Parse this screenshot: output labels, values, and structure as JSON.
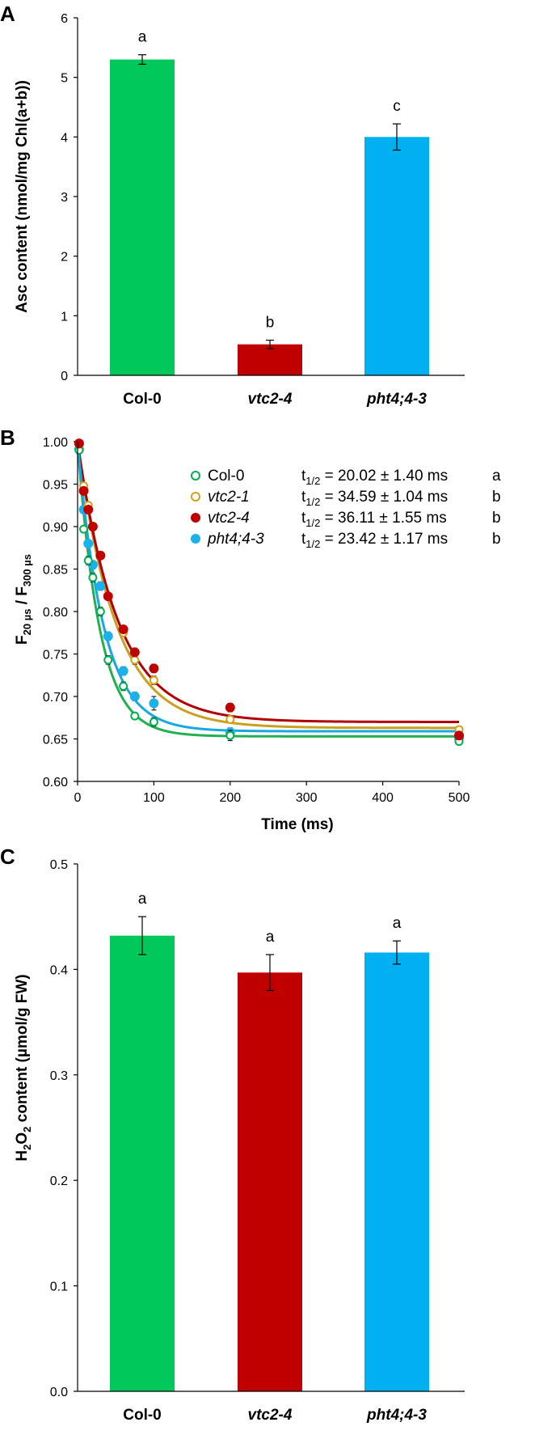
{
  "figure": {
    "panels": [
      "A",
      "B",
      "C"
    ]
  },
  "chart_data": [
    {
      "panel": "A",
      "type": "bar",
      "categories": [
        "Col-0",
        "vtc2-4",
        "pht4;4-3"
      ],
      "category_italic": [
        false,
        true,
        true
      ],
      "values": [
        5.3,
        0.52,
        4.0
      ],
      "errors": [
        0.08,
        0.07,
        0.22
      ],
      "significance": [
        "a",
        "b",
        "c"
      ],
      "colors": [
        "#00c85a",
        "#c00000",
        "#00b0f0"
      ],
      "ylabel": "Asc content (nmol/mg Chl(a+b))",
      "ylim": [
        0,
        6
      ],
      "yticks": [
        0,
        1,
        2,
        3,
        4,
        5,
        6
      ],
      "ytick_labels": [
        "0",
        "1",
        "2",
        "3",
        "4",
        "5",
        "6"
      ]
    },
    {
      "panel": "B",
      "type": "scatter",
      "xlabel": "Time (ms)",
      "ylabel_main": "F",
      "ylabel_sub1": "20 µs",
      "ylabel_sep": " / F",
      "ylabel_sub2": "300 µs",
      "xlim": [
        0,
        500
      ],
      "ylim": [
        0.6,
        1.0
      ],
      "xticks": [
        0,
        100,
        200,
        300,
        400,
        500
      ],
      "xtick_labels": [
        "0",
        "100",
        "200",
        "300",
        "400",
        "500"
      ],
      "yticks": [
        0.6,
        0.65,
        0.7,
        0.75,
        0.8,
        0.85,
        0.9,
        0.95,
        1.0
      ],
      "ytick_labels": [
        "0.60",
        "0.65",
        "0.70",
        "0.75",
        "0.80",
        "0.85",
        "0.90",
        "0.95",
        "1.00"
      ],
      "series": [
        {
          "name": "Col-0",
          "italic": false,
          "open": true,
          "color": "#00b050",
          "curve_color": "#20b050",
          "t_label": "t",
          "t_sub": "1/2",
          "t_value": " = 20.02 ± 1.40 ms",
          "group": "a",
          "fit": {
            "y0": 0.653,
            "A": 0.347,
            "t_half": 20.02
          },
          "x": [
            2,
            8,
            14,
            20,
            30,
            40,
            60,
            75,
            100,
            200,
            500
          ],
          "y": [
            0.99,
            0.897,
            0.86,
            0.84,
            0.8,
            0.743,
            0.712,
            0.677,
            0.67,
            0.654,
            0.647
          ],
          "err": [
            0.004,
            0.004,
            0.005,
            0.005,
            0.005,
            0.005,
            0.005,
            0.004,
            0.005,
            0.006,
            0.004
          ]
        },
        {
          "name": "vtc2-1",
          "italic": true,
          "open": true,
          "color": "#d4a017",
          "curve_color": "#c9a020",
          "t_label": "t",
          "t_sub": "1/2",
          "t_value": " = 34.59 ± 1.04 ms",
          "group": "b",
          "fit": {
            "y0": 0.663,
            "A": 0.337,
            "t_half": 34.59
          },
          "x": [
            2,
            8,
            14,
            20,
            30,
            40,
            60,
            75,
            100,
            200,
            500
          ],
          "y": [
            0.997,
            0.948,
            0.925,
            0.9,
            0.866,
            0.818,
            0.775,
            0.743,
            0.719,
            0.673,
            0.661
          ],
          "err": [
            0.003,
            0.004,
            0.004,
            0.004,
            0.004,
            0.004,
            0.004,
            0.005,
            0.005,
            0.004,
            0.004
          ]
        },
        {
          "name": "vtc2-4",
          "italic": true,
          "open": false,
          "color": "#c00000",
          "curve_color": "#b00000",
          "t_label": "t",
          "t_sub": "1/2",
          "t_value": " = 36.11 ± 1.55 ms",
          "group": "b",
          "fit": {
            "y0": 0.67,
            "A": 0.33,
            "t_half": 36.11
          },
          "x": [
            2,
            8,
            14,
            20,
            30,
            40,
            60,
            75,
            100,
            200,
            500
          ],
          "y": [
            0.998,
            0.942,
            0.92,
            0.9,
            0.866,
            0.818,
            0.779,
            0.752,
            0.733,
            0.687,
            0.654
          ],
          "err": [
            0.003,
            0.004,
            0.004,
            0.004,
            0.004,
            0.004,
            0.004,
            0.005,
            0.005,
            0.005,
            0.004
          ]
        },
        {
          "name": "pht4;4-3",
          "italic": true,
          "open": false,
          "color": "#1ab2e8",
          "curve_color": "#18a8e0",
          "t_label": "t",
          "t_sub": "1/2",
          "t_value": " = 23.42 ± 1.17 ms",
          "group": "b",
          "fit": {
            "y0": 0.659,
            "A": 0.341,
            "t_half": 23.42
          },
          "x": [
            2,
            8,
            14,
            20,
            30,
            40,
            60,
            75,
            100,
            200,
            500
          ],
          "y": [
            0.991,
            0.92,
            0.88,
            0.855,
            0.83,
            0.771,
            0.73,
            0.7,
            0.692,
            0.658,
            0.651
          ],
          "err": [
            0.004,
            0.004,
            0.004,
            0.005,
            0.005,
            0.005,
            0.005,
            0.005,
            0.008,
            0.005,
            0.004
          ]
        }
      ]
    },
    {
      "panel": "C",
      "type": "bar",
      "categories": [
        "Col-0",
        "vtc2-4",
        "pht4;4-3"
      ],
      "category_italic": [
        false,
        true,
        true
      ],
      "values": [
        0.432,
        0.397,
        0.416
      ],
      "errors": [
        0.018,
        0.017,
        0.011
      ],
      "significance": [
        "a",
        "a",
        "a"
      ],
      "colors": [
        "#00c85a",
        "#c00000",
        "#00b0f0"
      ],
      "ylabel_pre": "H",
      "ylabel_sub1": "2",
      "ylabel_mid": "O",
      "ylabel_sub2": "2",
      "ylabel_post": " content (µmol/g FW)",
      "ylim": [
        0,
        0.5
      ],
      "yticks": [
        0,
        0.1,
        0.2,
        0.3,
        0.4,
        0.5
      ],
      "ytick_labels": [
        "0.0",
        "0.1",
        "0.2",
        "0.3",
        "0.4",
        "0.5"
      ]
    }
  ]
}
